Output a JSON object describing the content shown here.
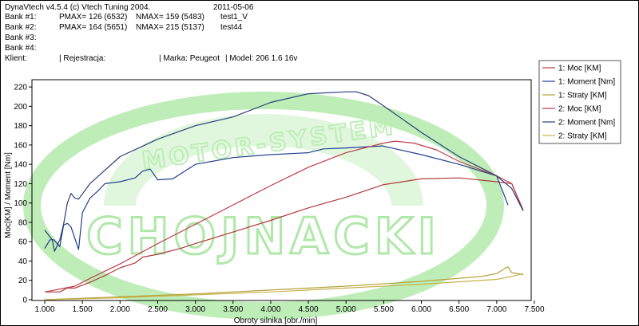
{
  "header": {
    "app": "DynaVtech v4.5.4 (c) Vtech Tuning 2004.",
    "date": "2011-05-06",
    "bank1": {
      "label": "Bank #1:",
      "pmax": "PMAX= 126 (6532)",
      "nmax": "NMAX= 159 (5483)",
      "name": "test1_V"
    },
    "bank2": {
      "label": "Bank #2:",
      "pmax": "PMAX= 164 (5651)",
      "nmax": "NMAX= 215 (5137)",
      "name": "test44"
    },
    "bank3": {
      "label": "Bank #3:"
    },
    "bank4": {
      "label": "Bank #4:"
    },
    "client": {
      "klient": "Klient:",
      "rej": "| Rejestracja:",
      "marka": "| Marka: Peugeot",
      "model": "| Model: 206 1.6 16v"
    }
  },
  "watermark": "MOTOR-SYSTEM CHOJNACKI",
  "colors": {
    "moc": "#b03a3a",
    "moment": "#1f3f8f",
    "straty": "#b5a23a",
    "watermark": "#a8e6a0"
  },
  "chart_data": {
    "type": "line",
    "xlabel": "Obroty silnika [obr./min]",
    "ylabel": "Moc[KM] / Moment [Nm]",
    "xlim": [
      1000,
      7500
    ],
    "ylim": [
      0,
      230
    ],
    "xticks": [
      1000,
      1500,
      2000,
      2500,
      3000,
      3500,
      4000,
      4500,
      5000,
      5500,
      6000,
      6500,
      7000,
      7500
    ],
    "xtick_labels": [
      "1.000",
      "1.500",
      "2.000",
      "2.500",
      "3.000",
      "3.500",
      "4.000",
      "4.500",
      "5.000",
      "5.500",
      "6.000",
      "6.500",
      "7.000",
      "7.500"
    ],
    "yticks": [
      0,
      20,
      40,
      60,
      80,
      100,
      120,
      140,
      160,
      180,
      200,
      220
    ],
    "series": [
      {
        "name": "1: Moc [KM]",
        "color": "#b03a3a",
        "x": [
          1000,
          1200,
          1300,
          1400,
          1600,
          1800,
          2000,
          2200,
          2300,
          2500,
          2800,
          3000,
          3500,
          4000,
          4500,
          5000,
          5500,
          6000,
          6500,
          7000,
          7200,
          7350
        ],
        "y": [
          8,
          8,
          12,
          12,
          18,
          25,
          33,
          38,
          44,
          47,
          53,
          58,
          70,
          82,
          95,
          106,
          119,
          125,
          126,
          122,
          120,
          93
        ]
      },
      {
        "name": "1: Moment [Nm]",
        "color": "#1f3f8f",
        "x": [
          1000,
          1070,
          1120,
          1200,
          1250,
          1300,
          1350,
          1450,
          1500,
          1600,
          1700,
          1800,
          2000,
          2200,
          2300,
          2400,
          2500,
          2700,
          3000,
          3500,
          4000,
          4500,
          4700,
          5000,
          5483,
          6000,
          6500,
          7000,
          7150
        ],
        "y": [
          53,
          62,
          62,
          55,
          77,
          79,
          75,
          52,
          90,
          105,
          112,
          120,
          122,
          126,
          133,
          135,
          124,
          125,
          140,
          147,
          150,
          152,
          156,
          157,
          159,
          150,
          140,
          128,
          98
        ]
      },
      {
        "name": "1: Straty [KM]",
        "color": "#b5a23a",
        "x": [
          1000,
          2000,
          3000,
          4000,
          5000,
          6000,
          6800,
          7000,
          7100,
          7150,
          7200,
          7350
        ],
        "y": [
          0,
          3,
          6,
          10,
          14,
          19,
          24,
          27,
          32,
          34,
          28,
          26
        ]
      },
      {
        "name": "2: Moc [KM]",
        "color": "#c03a4a",
        "x": [
          1000,
          1400,
          1600,
          2000,
          2500,
          3000,
          3500,
          4000,
          4500,
          5000,
          5500,
          5651,
          5900,
          6200,
          6500,
          7000,
          7200,
          7350
        ],
        "y": [
          8,
          14,
          22,
          37,
          58,
          78,
          98,
          118,
          137,
          152,
          162,
          164,
          162,
          155,
          143,
          128,
          120,
          92
        ]
      },
      {
        "name": "2: Moment [Nm]",
        "color": "#2a3f7a",
        "x": [
          1000,
          1050,
          1100,
          1130,
          1200,
          1250,
          1300,
          1350,
          1400,
          1450,
          1600,
          2000,
          2500,
          3000,
          3500,
          4000,
          4500,
          5000,
          5137,
          5300,
          5600,
          6000,
          6500,
          7000,
          7200,
          7350
        ],
        "y": [
          72,
          67,
          62,
          50,
          62,
          78,
          100,
          110,
          105,
          104,
          120,
          148,
          166,
          180,
          189,
          204,
          213,
          215,
          215,
          211,
          195,
          173,
          148,
          128,
          115,
          92
        ]
      },
      {
        "name": "2: Straty [KM]",
        "color": "#c8b24a",
        "x": [
          1000,
          2000,
          3000,
          4000,
          5000,
          6000,
          7000,
          7200,
          7350
        ],
        "y": [
          0,
          2,
          5,
          8,
          12,
          16,
          21,
          24,
          27
        ]
      }
    ],
    "legend": {
      "position": "right",
      "entries": [
        "1: Moc [KM]",
        "1: Moment [Nm]",
        "1: Straty [KM]",
        "2: Moc [KM]",
        "2: Moment [Nm]",
        "2: Straty [KM]"
      ]
    },
    "grid": false
  }
}
